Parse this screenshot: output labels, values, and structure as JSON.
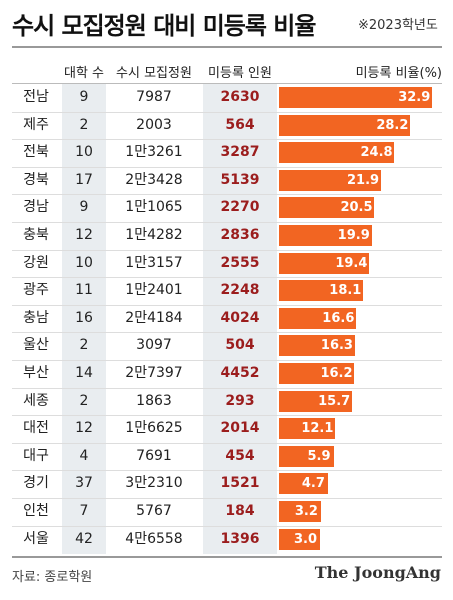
{
  "title": "수시 모집정원 대비 미등록 비율",
  "year_note": "※2023학년도",
  "headers": {
    "universities": "대학 수",
    "recruitment": "수시 모집정원",
    "unregistered": "미등록 인원",
    "ratio": "미등록 비율(%)"
  },
  "source": "자료: 종로학원",
  "credit": "The JoongAng",
  "colors": {
    "bar": "#f26522",
    "unregistered_text": "#9b1d1d",
    "shaded_column": "#e9edf0"
  },
  "chart_data": {
    "type": "bar",
    "title": "수시 모집정원 대비 미등록 비율",
    "xlabel": "",
    "ylabel": "미등록 비율(%)",
    "ylim": [
      0,
      35
    ],
    "categories": [
      "전남",
      "제주",
      "전북",
      "경북",
      "경남",
      "충북",
      "강원",
      "광주",
      "충남",
      "울산",
      "부산",
      "세종",
      "대전",
      "대구",
      "경기",
      "인천",
      "서울"
    ],
    "universities": [
      "9",
      "2",
      "10",
      "17",
      "9",
      "12",
      "10",
      "11",
      "16",
      "2",
      "14",
      "2",
      "12",
      "4",
      "37",
      "7",
      "42"
    ],
    "recruitment": [
      "7987",
      "2003",
      "1만3261",
      "2만3428",
      "1만1065",
      "1만4282",
      "1만3157",
      "1만2401",
      "2만4184",
      "3097",
      "2만7397",
      "1863",
      "1만6625",
      "7691",
      "3만2310",
      "5767",
      "4만6558"
    ],
    "unregistered": [
      "2630",
      "564",
      "3287",
      "5139",
      "2270",
      "2836",
      "2555",
      "2248",
      "4024",
      "504",
      "4452",
      "293",
      "2014",
      "454",
      "1521",
      "184",
      "1396"
    ],
    "values": [
      32.9,
      28.2,
      24.8,
      21.9,
      20.5,
      19.9,
      19.4,
      18.1,
      16.6,
      16.3,
      16.2,
      15.7,
      12.1,
      5.9,
      4.7,
      3.2,
      3.0
    ],
    "value_labels": [
      "32.9",
      "28.2",
      "24.8",
      "21.9",
      "20.5",
      "19.9",
      "19.4",
      "18.1",
      "16.6",
      "16.3",
      "16.2",
      "15.7",
      "12.1",
      "5.9",
      "4.7",
      "3.2",
      "3.0"
    ]
  }
}
